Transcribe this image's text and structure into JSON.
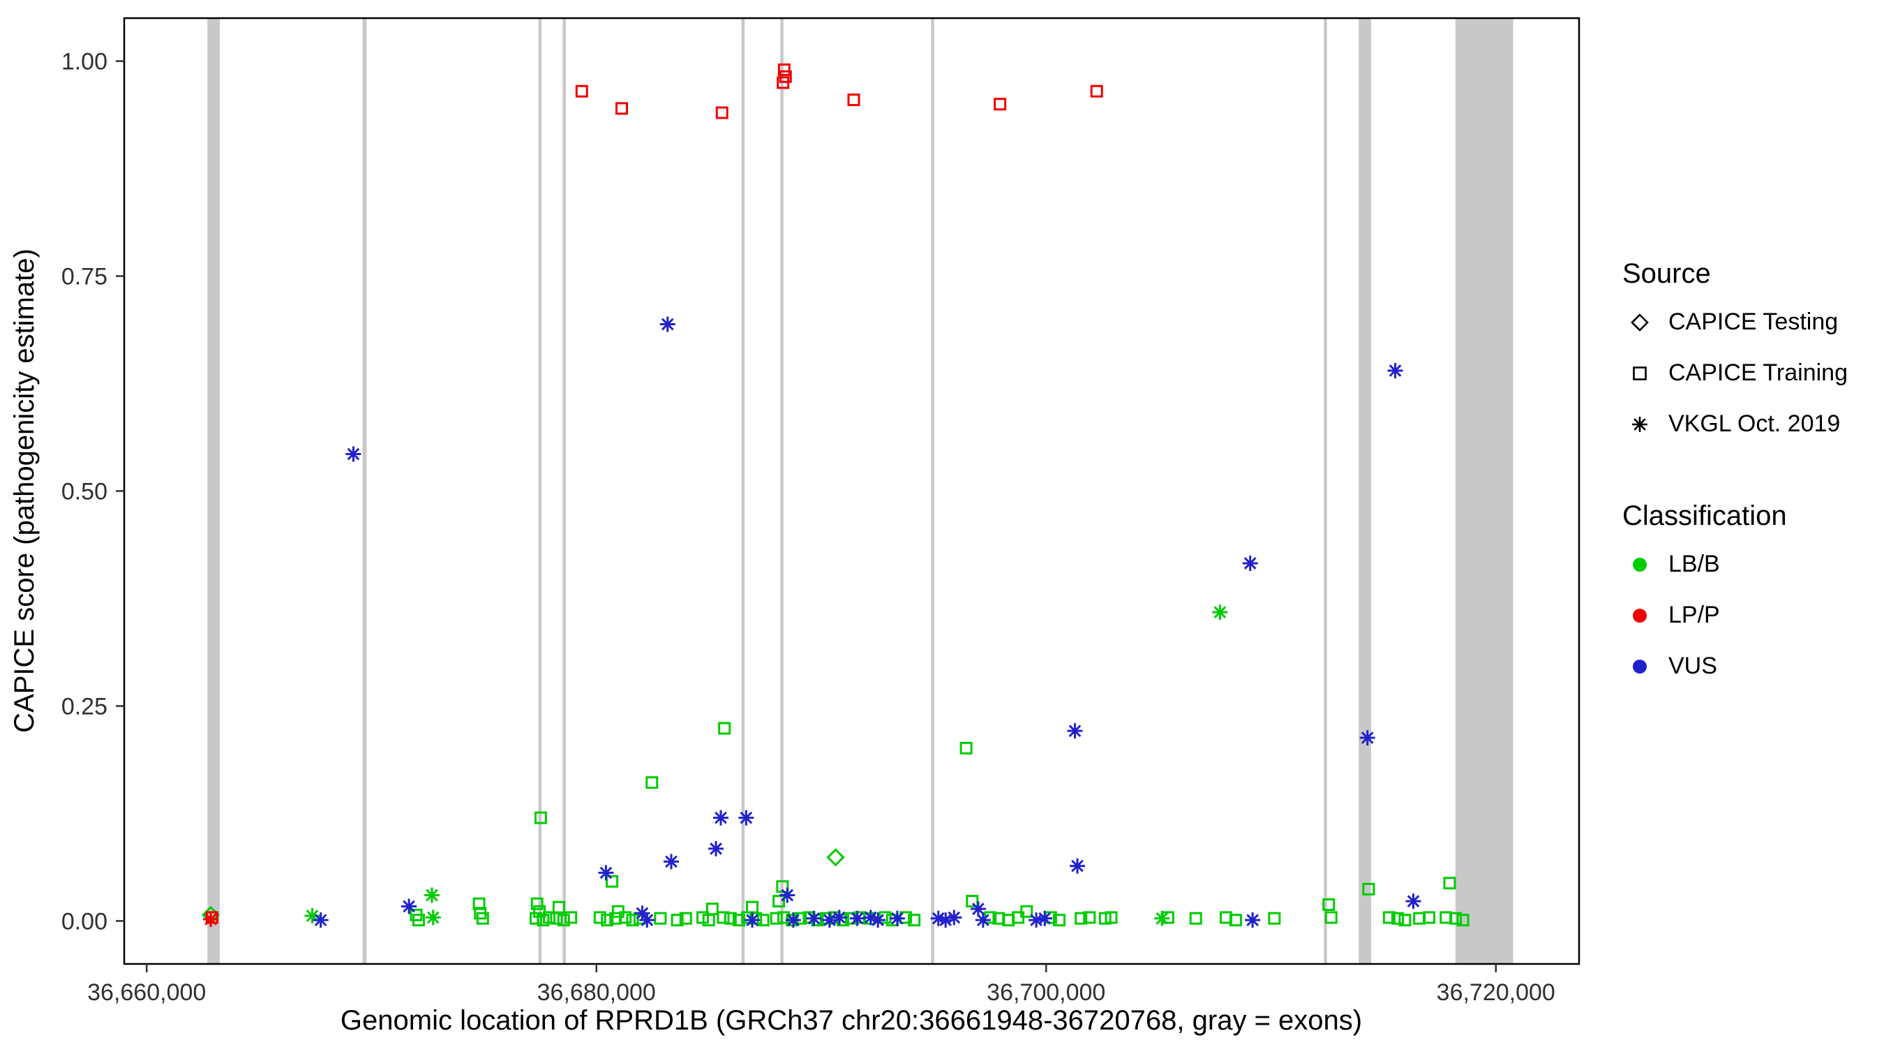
{
  "chart_data": {
    "type": "scatter",
    "title": "",
    "xlabel": "Genomic location of RPRD1B (GRCh37 chr20:36661948-36720768, gray = exons)",
    "ylabel": "CAPICE score (pathogenicity estimate)",
    "xlim": [
      36659000,
      36723700
    ],
    "ylim": [
      -0.05,
      1.05
    ],
    "grid": false,
    "xticks": [
      {
        "value": 36660000,
        "label": "36,660,000"
      },
      {
        "value": 36680000,
        "label": "36,680,000"
      },
      {
        "value": 36700000,
        "label": "36,700,000"
      },
      {
        "value": 36720000,
        "label": "36,720,000"
      }
    ],
    "yticks": [
      {
        "value": 0.0,
        "label": "0.00"
      },
      {
        "value": 0.25,
        "label": "0.25"
      },
      {
        "value": 0.5,
        "label": "0.50"
      },
      {
        "value": 0.75,
        "label": "0.75"
      },
      {
        "value": 1.0,
        "label": "1.00"
      }
    ],
    "exon_color": "#c8c8c8",
    "exons": [
      [
        36662700,
        36663250
      ],
      [
        36669600,
        36669780
      ],
      [
        36677420,
        36677560
      ],
      [
        36678500,
        36678640
      ],
      [
        36686450,
        36686590
      ],
      [
        36688180,
        36688320
      ],
      [
        36694880,
        36695020
      ],
      [
        36712350,
        36712490
      ],
      [
        36713900,
        36714450
      ],
      [
        36718200,
        36720768
      ]
    ],
    "series": [
      {
        "name": "CAPICE Testing - LB/B",
        "source": "CAPICE Testing",
        "classification": "LB/B",
        "shape": "diamond",
        "color": "#00cc00",
        "points": [
          [
            36662849,
            0.007
          ],
          [
            36690638,
            0.074
          ]
        ]
      },
      {
        "name": "CAPICE Training - LB/B",
        "source": "CAPICE Training",
        "classification": "LB/B",
        "shape": "square",
        "color": "#00cc00",
        "points": [
          [
            36671986,
            0.007
          ],
          [
            36672094,
            0.001
          ],
          [
            36674781,
            0.02
          ],
          [
            36674835,
            0.009
          ],
          [
            36674943,
            0.003
          ],
          [
            36677308,
            0.003
          ],
          [
            36677361,
            0.02
          ],
          [
            36677469,
            0.011
          ],
          [
            36677523,
            0.12
          ],
          [
            36677630,
            0.001
          ],
          [
            36677899,
            0.004
          ],
          [
            36678221,
            0.003
          ],
          [
            36678329,
            0.016
          ],
          [
            36678544,
            0.001
          ],
          [
            36678866,
            0.004
          ],
          [
            36680156,
            0.004
          ],
          [
            36680479,
            0.001
          ],
          [
            36680694,
            0.046
          ],
          [
            36680855,
            0.003
          ],
          [
            36680963,
            0.011
          ],
          [
            36681285,
            0.004
          ],
          [
            36681608,
            0.001
          ],
          [
            36681930,
            0.003
          ],
          [
            36682468,
            0.161
          ],
          [
            36682844,
            0.003
          ],
          [
            36683596,
            0.001
          ],
          [
            36683973,
            0.003
          ],
          [
            36684725,
            0.004
          ],
          [
            36684994,
            0.001
          ],
          [
            36685155,
            0.014
          ],
          [
            36685639,
            0.004
          ],
          [
            36685693,
            0.224
          ],
          [
            36685961,
            0.003
          ],
          [
            36686338,
            0.001
          ],
          [
            36686714,
            0.004
          ],
          [
            36686929,
            0.016
          ],
          [
            36687090,
            0.003
          ],
          [
            36687413,
            0.001
          ],
          [
            36688004,
            0.003
          ],
          [
            36688111,
            0.023
          ],
          [
            36688273,
            0.04
          ],
          [
            36688326,
            0.004
          ],
          [
            36688703,
            0.001
          ],
          [
            36689079,
            0.003
          ],
          [
            36689455,
            0.004
          ],
          [
            36689831,
            0.001
          ],
          [
            36690208,
            0.003
          ],
          [
            36690584,
            0.004
          ],
          [
            36690960,
            0.001
          ],
          [
            36691336,
            0.003
          ],
          [
            36691713,
            0.004
          ],
          [
            36692143,
            0.003
          ],
          [
            36692841,
            0.004
          ],
          [
            36693164,
            0.001
          ],
          [
            36693755,
            0.004
          ],
          [
            36694131,
            0.001
          ],
          [
            36696443,
            0.201
          ],
          [
            36696711,
            0.023
          ],
          [
            36697518,
            0.004
          ],
          [
            36697894,
            0.003
          ],
          [
            36698324,
            0.001
          ],
          [
            36698754,
            0.004
          ],
          [
            36699130,
            0.011
          ],
          [
            36700205,
            0.004
          ],
          [
            36700581,
            0.001
          ],
          [
            36701549,
            0.003
          ],
          [
            36701925,
            0.004
          ],
          [
            36702624,
            0.003
          ],
          [
            36702893,
            0.004
          ],
          [
            36705419,
            0.004
          ],
          [
            36706655,
            0.003
          ],
          [
            36707999,
            0.004
          ],
          [
            36708429,
            0.001
          ],
          [
            36710149,
            0.003
          ],
          [
            36712568,
            0.019
          ],
          [
            36712675,
            0.004
          ],
          [
            36714341,
            0.037
          ],
          [
            36715255,
            0.004
          ],
          [
            36715631,
            0.003
          ],
          [
            36715954,
            0.001
          ],
          [
            36716599,
            0.003
          ],
          [
            36717029,
            0.004
          ],
          [
            36717781,
            0.004
          ],
          [
            36717943,
            0.044
          ],
          [
            36718211,
            0.003
          ],
          [
            36718534,
            0.001
          ]
        ]
      },
      {
        "name": "CAPICE Training - LP/P",
        "source": "CAPICE Training",
        "classification": "LP/P",
        "shape": "square",
        "color": "#ee0000",
        "points": [
          [
            36662903,
            0.004
          ],
          [
            36679350,
            0.965
          ],
          [
            36681124,
            0.945
          ],
          [
            36685585,
            0.94
          ],
          [
            36688300,
            0.975
          ],
          [
            36688350,
            0.99
          ],
          [
            36688410,
            0.982
          ],
          [
            36691444,
            0.955
          ],
          [
            36697948,
            0.95
          ],
          [
            36702248,
            0.965
          ]
        ]
      },
      {
        "name": "VKGL Oct. 2019 - LB/B",
        "source": "VKGL Oct. 2019",
        "classification": "LB/B",
        "shape": "asterisk",
        "color": "#00cc00",
        "points": [
          [
            36667364,
            0.006
          ],
          [
            36672685,
            0.03
          ],
          [
            36672739,
            0.004
          ],
          [
            36705150,
            0.003
          ],
          [
            36707730,
            0.359
          ]
        ]
      },
      {
        "name": "VKGL Oct. 2019 - LP/P",
        "source": "VKGL Oct. 2019",
        "classification": "LP/P",
        "shape": "asterisk",
        "color": "#ee0000",
        "points": [
          [
            36662849,
            0.002
          ]
        ]
      },
      {
        "name": "VKGL Oct. 2019 - VUS",
        "source": "VKGL Oct. 2019",
        "classification": "VUS",
        "shape": "asterisk",
        "color": "#2222cc",
        "points": [
          [
            36667740,
            0.001
          ],
          [
            36669191,
            0.543
          ],
          [
            36671664,
            0.017
          ],
          [
            36680425,
            0.056
          ],
          [
            36682038,
            0.009
          ],
          [
            36682253,
            0.001
          ],
          [
            36683166,
            0.694
          ],
          [
            36683328,
            0.069
          ],
          [
            36685316,
            0.084
          ],
          [
            36685531,
            0.12
          ],
          [
            36686660,
            0.12
          ],
          [
            36686930,
            0.001
          ],
          [
            36688488,
            0.03
          ],
          [
            36688756,
            0.001
          ],
          [
            36689670,
            0.003
          ],
          [
            36690369,
            0.001
          ],
          [
            36690799,
            0.004
          ],
          [
            36691605,
            0.003
          ],
          [
            36692196,
            0.004
          ],
          [
            36692519,
            0.001
          ],
          [
            36693379,
            0.003
          ],
          [
            36695206,
            0.003
          ],
          [
            36695529,
            0.001
          ],
          [
            36695905,
            0.004
          ],
          [
            36696980,
            0.014
          ],
          [
            36697195,
            0.001
          ],
          [
            36699560,
            0.001
          ],
          [
            36699936,
            0.003
          ],
          [
            36701280,
            0.221
          ],
          [
            36701388,
            0.064
          ],
          [
            36709074,
            0.416
          ],
          [
            36709181,
            0.001
          ],
          [
            36714288,
            0.213
          ],
          [
            36715524,
            0.64
          ],
          [
            36716330,
            0.023
          ]
        ]
      }
    ]
  },
  "legend": {
    "source": {
      "title": "Source",
      "items": [
        {
          "label": "CAPICE Testing",
          "shape": "diamond"
        },
        {
          "label": "CAPICE Training",
          "shape": "square"
        },
        {
          "label": "VKGL Oct. 2019",
          "shape": "asterisk"
        }
      ]
    },
    "classification": {
      "title": "Classification",
      "items": [
        {
          "label": "LB/B",
          "color": "#00cc00"
        },
        {
          "label": "LP/P",
          "color": "#ee0000"
        },
        {
          "label": "VUS",
          "color": "#2222cc"
        }
      ]
    }
  }
}
